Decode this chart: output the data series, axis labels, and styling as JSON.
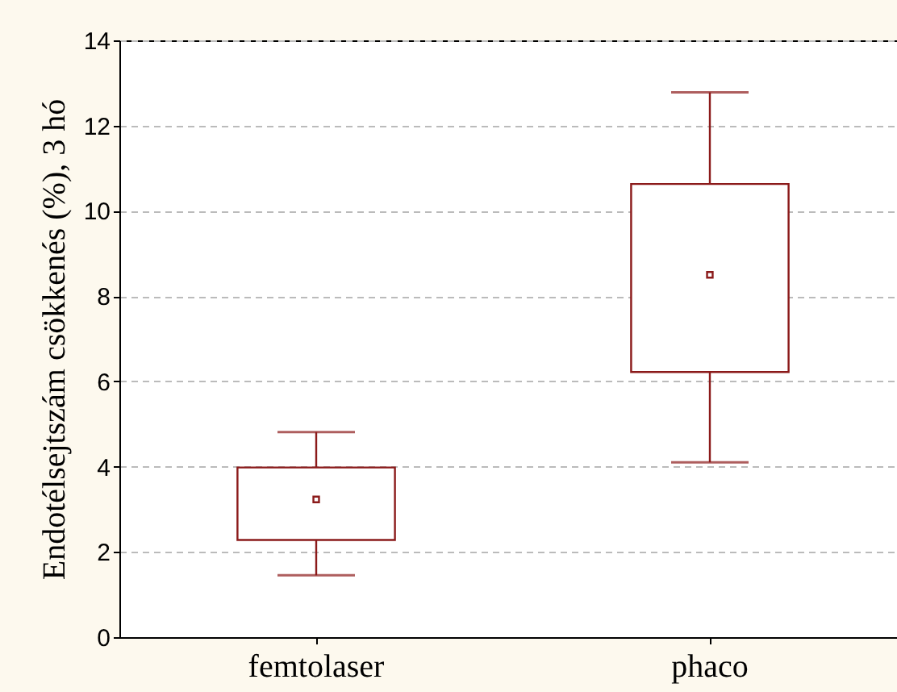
{
  "chart_data": {
    "type": "box",
    "ylabel": "Endotélsejtszám csökkenés (%), 3 hó",
    "categories": [
      "femtolaser",
      "phaco"
    ],
    "boxes": [
      {
        "low": 1.45,
        "q1": 2.28,
        "median": 3.23,
        "q3": 3.98,
        "high": 4.81
      },
      {
        "low": 4.1,
        "q1": 6.22,
        "median": 8.5,
        "q3": 10.63,
        "high": 12.78
      }
    ],
    "color": "#8b1a1a",
    "ylim": [
      0,
      14
    ],
    "yticks": [
      0,
      2,
      4,
      6,
      8,
      10,
      12,
      14
    ],
    "grid": "y"
  }
}
